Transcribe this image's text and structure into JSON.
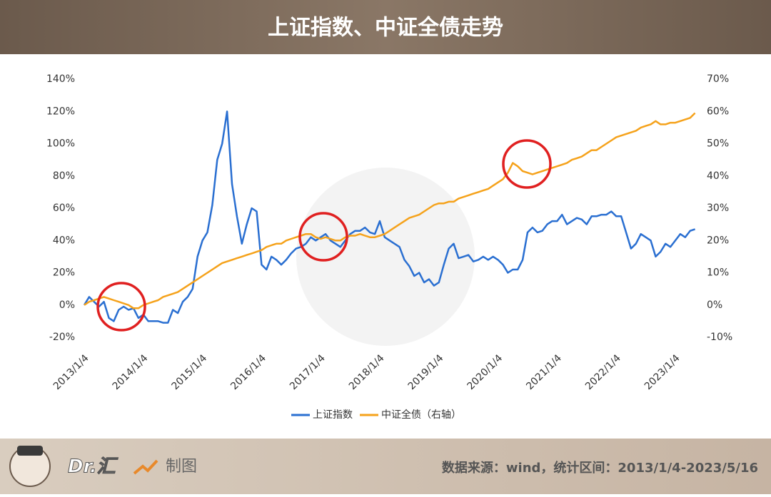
{
  "header": {
    "title": "上证指数、中证全债走势"
  },
  "footer": {
    "brand": "Dr.汇",
    "made": "制图",
    "source": "数据来源：wind，统计区间：2013/1/4-2023/5/16"
  },
  "chart_data": {
    "type": "line",
    "categories": [
      "2013/1/4",
      null,
      null,
      null,
      null,
      null,
      null,
      null,
      null,
      null,
      null,
      null,
      "2014/1/4",
      null,
      null,
      null,
      null,
      null,
      null,
      null,
      null,
      null,
      null,
      null,
      "2015/1/4",
      null,
      null,
      null,
      null,
      null,
      null,
      null,
      null,
      null,
      null,
      null,
      "2016/1/4",
      null,
      null,
      null,
      null,
      null,
      null,
      null,
      null,
      null,
      null,
      null,
      "2017/1/4",
      null,
      null,
      null,
      null,
      null,
      null,
      null,
      null,
      null,
      null,
      null,
      "2018/1/4",
      null,
      null,
      null,
      null,
      null,
      null,
      null,
      null,
      null,
      null,
      null,
      "2019/1/4",
      null,
      null,
      null,
      null,
      null,
      null,
      null,
      null,
      null,
      null,
      null,
      "2020/1/4",
      null,
      null,
      null,
      null,
      null,
      null,
      null,
      null,
      null,
      null,
      null,
      "2021/1/4",
      null,
      null,
      null,
      null,
      null,
      null,
      null,
      null,
      null,
      null,
      null,
      "2022/1/4",
      null,
      null,
      null,
      null,
      null,
      null,
      null,
      null,
      null,
      null,
      null,
      "2023/1/4",
      null,
      null,
      null,
      null
    ],
    "series": [
      {
        "name": "上证指数",
        "color": "#2a6fd1",
        "axis": "y",
        "values": [
          0,
          5,
          2,
          -1,
          2,
          -8,
          -10,
          -3,
          -1,
          -3,
          -2,
          -8,
          -6,
          -10,
          -10,
          -10,
          -11,
          -11,
          -3,
          -5,
          2,
          5,
          10,
          30,
          40,
          45,
          62,
          90,
          100,
          120,
          75,
          55,
          38,
          50,
          60,
          58,
          25,
          22,
          30,
          28,
          25,
          28,
          32,
          35,
          36,
          38,
          42,
          40,
          42,
          44,
          40,
          38,
          36,
          40,
          44,
          46,
          46,
          48,
          45,
          44,
          52,
          42,
          40,
          38,
          36,
          28,
          24,
          18,
          20,
          14,
          16,
          12,
          14,
          25,
          35,
          38,
          29,
          30,
          31,
          27,
          28,
          30,
          28,
          30,
          28,
          25,
          20,
          22,
          22,
          28,
          45,
          48,
          45,
          46,
          50,
          52,
          52,
          56,
          50,
          52,
          54,
          53,
          50,
          55,
          55,
          56,
          56,
          58,
          55,
          55,
          45,
          35,
          38,
          44,
          42,
          40,
          30,
          33,
          38,
          36,
          40,
          44,
          42,
          46,
          47
        ]
      },
      {
        "name": "中证全债（右轴）",
        "color": "#f5a21b",
        "axis": "y2",
        "values": [
          0,
          1,
          1.5,
          2,
          2.5,
          2,
          1.5,
          1,
          0.5,
          0,
          -1,
          -1,
          0,
          0.5,
          1,
          1.5,
          2.5,
          3,
          3.5,
          4,
          5,
          6,
          7,
          8,
          9,
          10,
          11,
          12,
          13,
          13.5,
          14,
          14.5,
          15,
          15.5,
          16,
          16.5,
          17,
          18,
          18.5,
          19,
          19,
          20,
          20.5,
          21,
          21.5,
          22,
          22,
          21,
          20.5,
          21,
          20.5,
          20,
          20,
          21,
          21.5,
          21.5,
          22,
          21.5,
          21,
          21,
          21.5,
          22,
          23,
          24,
          25,
          26,
          27,
          27.5,
          28,
          29,
          30,
          31,
          31.5,
          31.5,
          32,
          32,
          33,
          33.5,
          34,
          34.5,
          35,
          35.5,
          36,
          37,
          38,
          39,
          41,
          44,
          43,
          41.5,
          41,
          40.5,
          41,
          41.5,
          42,
          42.5,
          43,
          43.5,
          44,
          45,
          45.5,
          46,
          47,
          48,
          48,
          49,
          50,
          51,
          52,
          52.5,
          53,
          53.5,
          54,
          55,
          55.5,
          56,
          57,
          56,
          56,
          56.5,
          56.5,
          57,
          57.5,
          58,
          59.5
        ]
      }
    ],
    "ylim": [
      -20,
      140
    ],
    "yticks": [
      {
        "value": -20,
        "label": "-20%"
      },
      {
        "value": 0,
        "label": "0%"
      },
      {
        "value": 20,
        "label": "20%"
      },
      {
        "value": 40,
        "label": "40%"
      },
      {
        "value": 60,
        "label": "60%"
      },
      {
        "value": 80,
        "label": "80%"
      },
      {
        "value": 100,
        "label": "100%"
      },
      {
        "value": 120,
        "label": "120%"
      },
      {
        "value": 140,
        "label": "140%"
      }
    ],
    "y2lim": [
      -10,
      70
    ],
    "y2ticks": [
      {
        "value": -10,
        "label": "-10%"
      },
      {
        "value": 0,
        "label": "0%"
      },
      {
        "value": 10,
        "label": "10%"
      },
      {
        "value": 20,
        "label": "20%"
      },
      {
        "value": 30,
        "label": "30%"
      },
      {
        "value": 40,
        "label": "40%"
      },
      {
        "value": 50,
        "label": "50%"
      },
      {
        "value": 60,
        "label": "60%"
      },
      {
        "value": 70,
        "label": "70%"
      }
    ],
    "legend": "bottom"
  }
}
